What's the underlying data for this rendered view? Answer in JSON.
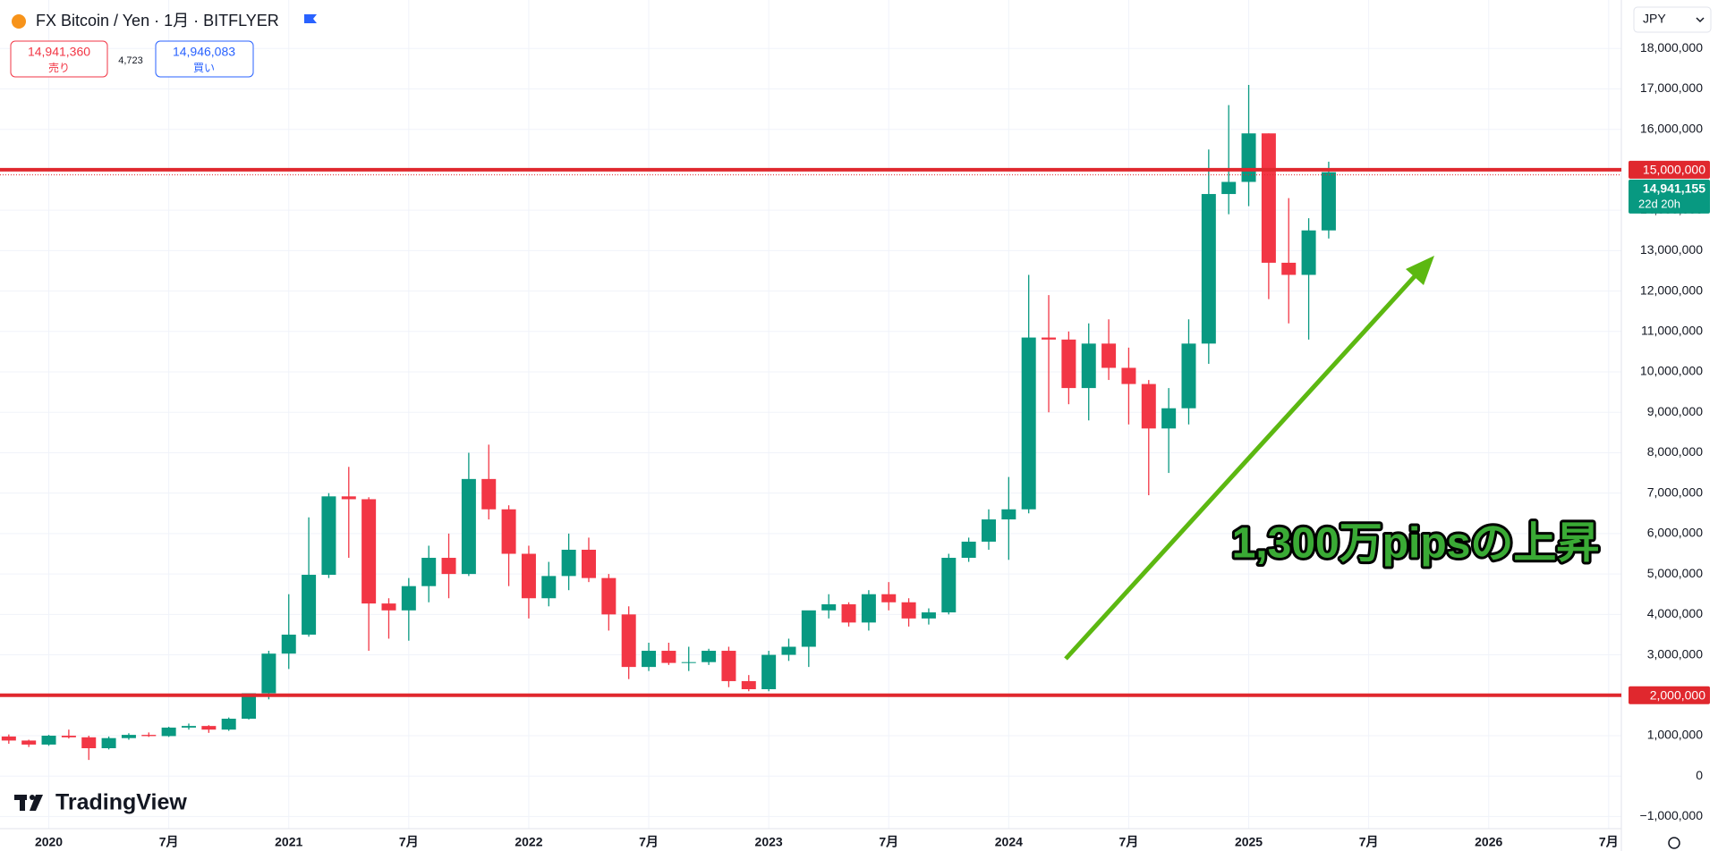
{
  "header": {
    "title": "FX Bitcoin / Yen · 1月 · BITFLYER",
    "sell_price": "14,941,360",
    "sell_label": "売り",
    "spread": "4,723",
    "buy_price": "14,946,083",
    "buy_label": "買い",
    "currency": "JPY",
    "logo": "TradingView"
  },
  "chart_data": {
    "type": "candlestick",
    "categories": [
      null,
      null,
      "2020",
      null,
      null,
      null,
      null,
      null,
      "7月",
      null,
      null,
      null,
      null,
      null,
      "2021",
      null,
      null,
      null,
      null,
      null,
      "7月",
      null,
      null,
      null,
      null,
      null,
      "2022",
      null,
      null,
      null,
      null,
      null,
      "7月",
      null,
      null,
      null,
      null,
      null,
      "2023",
      null,
      null,
      null,
      null,
      null,
      "7月",
      null,
      null,
      null,
      null,
      null,
      "2024",
      null,
      null,
      null,
      null,
      null,
      "7月",
      null,
      null,
      null,
      null,
      null,
      "2025",
      null,
      null,
      null,
      null,
      null,
      "7月",
      null,
      null,
      null,
      null,
      null,
      "2026",
      null,
      null,
      null,
      null,
      null,
      "7月"
    ],
    "open": [
      980000,
      880000,
      780000,
      1000000,
      960000,
      690000,
      940000,
      1020000,
      990000,
      1200000,
      1240000,
      1150000,
      1420000,
      2050000,
      3030000,
      3500000,
      4980000,
      6920000,
      6850000,
      4270000,
      4100000,
      4700000,
      5400000,
      5000000,
      7350000,
      6600000,
      5500000,
      4400000,
      4950000,
      5600000,
      4900000,
      4000000,
      2700000,
      3100000,
      2800000,
      2820000,
      3100000,
      2350000,
      2150000,
      3000000,
      3200000,
      4100000,
      4250000,
      3800000,
      4500000,
      4300000,
      3900000,
      4050000,
      5400000,
      5800000,
      6350000,
      6600000,
      10850000,
      10800000,
      9600000,
      10700000,
      10100000,
      9700000,
      8600000,
      9100000,
      10700000,
      14400000,
      14700000,
      15900000,
      12700000,
      12400000,
      13500000,
      null,
      null,
      null,
      null,
      null,
      null,
      null,
      null,
      null,
      null,
      null,
      null,
      null,
      null
    ],
    "high": [
      1030000,
      900000,
      1020000,
      1150000,
      1000000,
      980000,
      1060000,
      1080000,
      1220000,
      1300000,
      1260000,
      1450000,
      2050000,
      3100000,
      4500000,
      6400000,
      7000000,
      7650000,
      6900000,
      4400000,
      4900000,
      5700000,
      6000000,
      8000000,
      8200000,
      6700000,
      5700000,
      5300000,
      6000000,
      5900000,
      5000000,
      4200000,
      3300000,
      3300000,
      3200000,
      3150000,
      3200000,
      2500000,
      3100000,
      3400000,
      4000000,
      4500000,
      4300000,
      4600000,
      4800000,
      4400000,
      4150000,
      5500000,
      5900000,
      6600000,
      7400000,
      12400000,
      11900000,
      11000000,
      11200000,
      11300000,
      10600000,
      9800000,
      9600000,
      11300000,
      15500000,
      16600000,
      17100000,
      15900000,
      14300000,
      13800000,
      15200000,
      null,
      null,
      null,
      null,
      null,
      null,
      null,
      null,
      null,
      null,
      null,
      null,
      null,
      null
    ],
    "low": [
      800000,
      720000,
      750000,
      930000,
      400000,
      660000,
      900000,
      970000,
      970000,
      1150000,
      1070000,
      1120000,
      1400000,
      1900000,
      2650000,
      3450000,
      4900000,
      5400000,
      3100000,
      3400000,
      3350000,
      4300000,
      4400000,
      4950000,
      6350000,
      4700000,
      3900000,
      4200000,
      4600000,
      4800000,
      3600000,
      2400000,
      2600000,
      2750000,
      2600000,
      2750000,
      2200000,
      2100000,
      2100000,
      2850000,
      2700000,
      3900000,
      3700000,
      3600000,
      4100000,
      3700000,
      3750000,
      4000000,
      5300000,
      5600000,
      5350000,
      6500000,
      9000000,
      9200000,
      8800000,
      9800000,
      8700000,
      6950000,
      7500000,
      8700000,
      10200000,
      13900000,
      14100000,
      11800000,
      11200000,
      10800000,
      13300000,
      null,
      null,
      null,
      null,
      null,
      null,
      null,
      null,
      null,
      null,
      null,
      null,
      null,
      null
    ],
    "close": [
      880000,
      780000,
      1000000,
      960000,
      690000,
      940000,
      1020000,
      990000,
      1200000,
      1240000,
      1150000,
      1420000,
      2050000,
      3030000,
      3500000,
      4980000,
      6920000,
      6850000,
      4270000,
      4100000,
      4700000,
      5400000,
      5000000,
      7350000,
      6600000,
      5500000,
      4400000,
      4950000,
      5600000,
      4900000,
      4000000,
      2700000,
      3100000,
      2800000,
      2820000,
      3100000,
      2350000,
      2150000,
      3000000,
      3200000,
      4100000,
      4250000,
      3800000,
      4500000,
      4300000,
      3900000,
      4050000,
      5400000,
      5800000,
      6350000,
      6600000,
      10850000,
      10800000,
      9600000,
      10700000,
      10100000,
      9700000,
      8600000,
      9100000,
      10700000,
      14400000,
      14700000,
      15900000,
      12700000,
      12400000,
      13500000,
      14941155,
      null,
      null,
      null,
      null,
      null,
      null,
      null,
      null,
      null,
      null,
      null,
      null,
      null,
      null
    ],
    "up_color": "#089981",
    "down_color": "#f23645",
    "ylim": [
      -1300000,
      19200000
    ],
    "yticks": [
      {
        "value": -1000000,
        "label": "−1,000,000"
      },
      0,
      {
        "value": 1000000,
        "label": "1,000,000"
      },
      {
        "value": 2000000,
        "label": "2,000,000"
      },
      {
        "value": 3000000,
        "label": "3,000,000"
      },
      {
        "value": 4000000,
        "label": "4,000,000"
      },
      {
        "value": 5000000,
        "label": "5,000,000"
      },
      {
        "value": 6000000,
        "label": "6,000,000"
      },
      {
        "value": 7000000,
        "label": "7,000,000"
      },
      {
        "value": 8000000,
        "label": "8,000,000"
      },
      {
        "value": 9000000,
        "label": "9,000,000"
      },
      {
        "value": 10000000,
        "label": "10,000,000"
      },
      {
        "value": 11000000,
        "label": "11,000,000"
      },
      {
        "value": 12000000,
        "label": "12,000,000"
      },
      {
        "value": 13000000,
        "label": "13,000,000"
      },
      {
        "value": 14000000,
        "label": "14,000,000"
      },
      {
        "value": 15000000,
        "label": "15,000,000"
      },
      {
        "value": 16000000,
        "label": "16,000,000"
      },
      {
        "value": 17000000,
        "label": "17,000,000"
      },
      {
        "value": 18000000,
        "label": "18,000,000"
      }
    ],
    "grid": true,
    "hlines": [
      {
        "value": 15000000,
        "label": "15,000,000"
      },
      {
        "value": 2000000,
        "label": "2,000,000"
      }
    ],
    "hline_color": "#e0282e",
    "last_price": {
      "value": 14941155,
      "label": "14,941,155"
    },
    "countdown": "22d 20h",
    "annotation": "1,300万pipsの上昇",
    "annotation_color": "#3aaa35"
  }
}
